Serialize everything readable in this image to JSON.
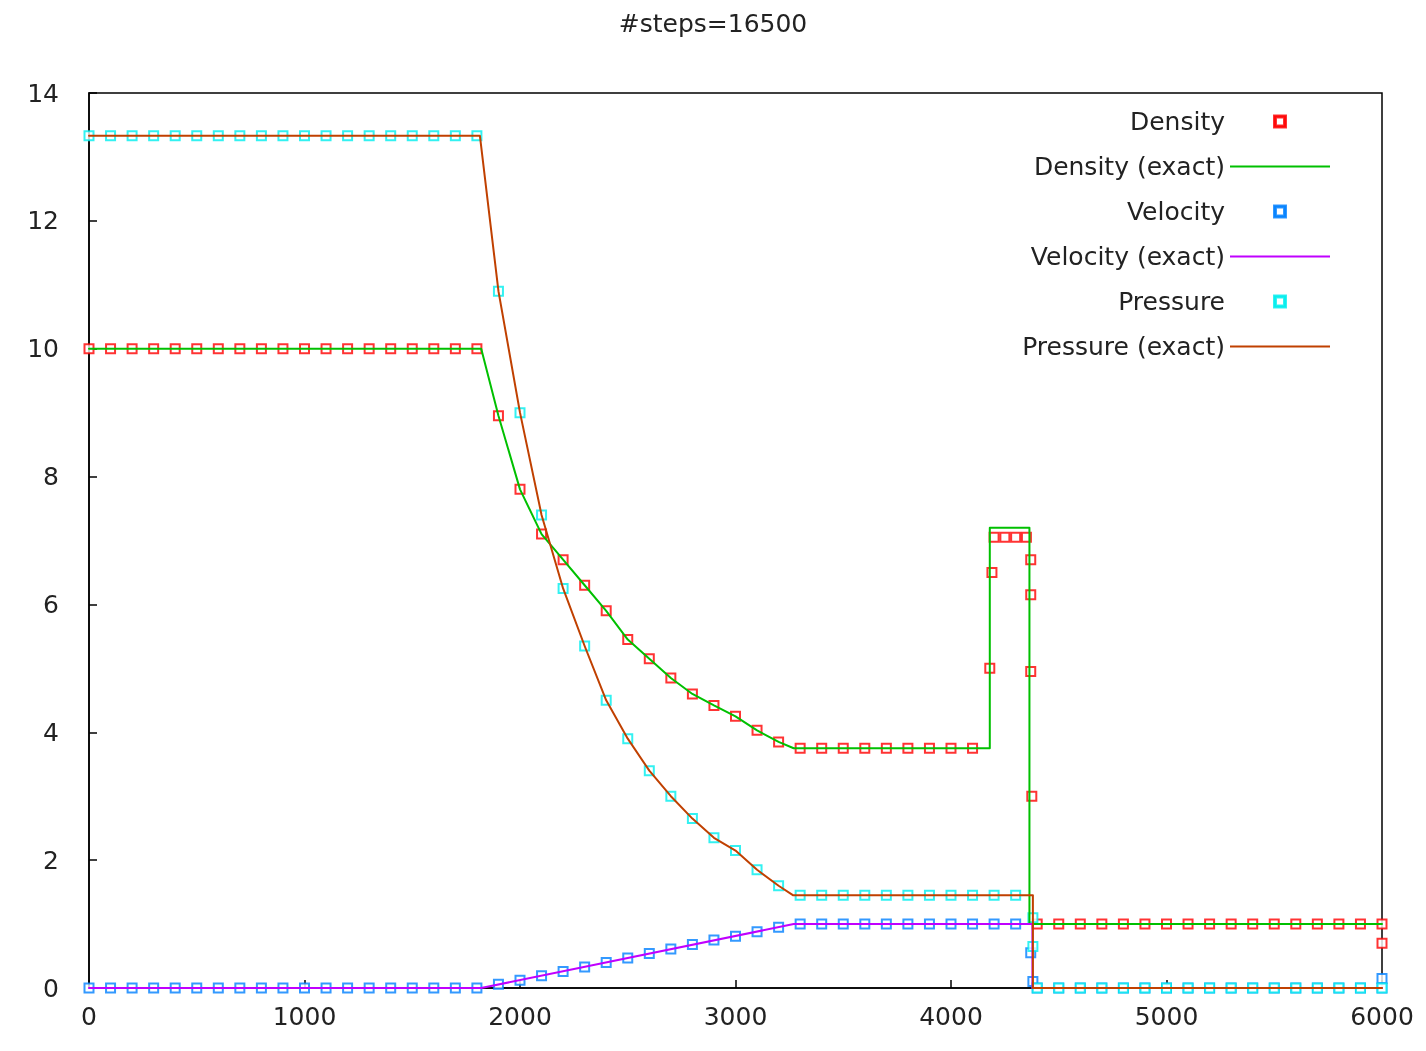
{
  "chart_data": {
    "type": "scatter",
    "title": "#steps=16500",
    "xlim": [
      0,
      6000
    ],
    "xticks": [
      0,
      1000,
      2000,
      3000,
      4000,
      5000,
      6000
    ],
    "ylim": [
      0,
      14
    ],
    "yticks": [
      0,
      2,
      4,
      6,
      8,
      10,
      12,
      14
    ],
    "grid": false,
    "legend": "top right",
    "series": [
      {
        "name": "Density",
        "marker": "square",
        "color": "#ff0000",
        "x": [
          0,
          100,
          200,
          300,
          400,
          500,
          600,
          700,
          800,
          900,
          1000,
          1100,
          1200,
          1300,
          1400,
          1500,
          1600,
          1700,
          1800,
          1900,
          2000,
          2100,
          2200,
          2300,
          2400,
          2500,
          2600,
          2700,
          2800,
          2900,
          3000,
          3100,
          3200,
          3300,
          3400,
          3500,
          3600,
          3700,
          3800,
          3900,
          4000,
          4100,
          4180,
          4190,
          4200,
          4250,
          4300,
          4350,
          4370,
          4370,
          4370,
          4375,
          4400,
          4500,
          4600,
          4700,
          4800,
          4900,
          5000,
          5100,
          5200,
          5300,
          5400,
          5500,
          5600,
          5700,
          5800,
          5900,
          6000,
          6000
        ],
        "values": [
          10,
          10,
          10,
          10,
          10,
          10,
          10,
          10,
          10,
          10,
          10,
          10,
          10,
          10,
          10,
          10,
          10,
          10,
          10,
          8.95,
          7.8,
          7.1,
          6.7,
          6.3,
          5.9,
          5.45,
          5.15,
          4.85,
          4.6,
          4.42,
          4.25,
          4.03,
          3.85,
          3.75,
          3.75,
          3.75,
          3.75,
          3.75,
          3.75,
          3.75,
          3.75,
          3.75,
          5.0,
          6.5,
          7.05,
          7.05,
          7.05,
          7.05,
          6.7,
          6.15,
          4.95,
          3.0,
          1,
          1,
          1,
          1,
          1,
          1,
          1,
          1,
          1,
          1,
          1,
          1,
          1,
          1,
          1,
          1,
          1,
          0.7
        ]
      },
      {
        "name": "Density (exact)",
        "type": "line",
        "marker": "none",
        "line_style": "solid",
        "color": "#00c000",
        "x": [
          0,
          1820,
          1900,
          2000,
          2100,
          2200,
          2300,
          2400,
          2500,
          2600,
          2700,
          2800,
          2900,
          3000,
          3100,
          3200,
          3270,
          4180,
          4180,
          4364,
          4364,
          6000
        ],
        "values": [
          10,
          10,
          8.95,
          7.8,
          7.1,
          6.7,
          6.3,
          5.9,
          5.45,
          5.15,
          4.85,
          4.6,
          4.42,
          4.25,
          4.03,
          3.85,
          3.75,
          3.75,
          7.2,
          7.2,
          1,
          1
        ]
      },
      {
        "name": "Velocity",
        "marker": "square",
        "color": "#0080ff",
        "x": [
          0,
          100,
          200,
          300,
          400,
          500,
          600,
          700,
          800,
          900,
          1000,
          1100,
          1200,
          1300,
          1400,
          1500,
          1600,
          1700,
          1800,
          1900,
          2000,
          2100,
          2200,
          2300,
          2400,
          2500,
          2600,
          2700,
          2800,
          2900,
          3000,
          3100,
          3200,
          3300,
          3400,
          3500,
          3600,
          3700,
          3800,
          3900,
          4000,
          4100,
          4200,
          4300,
          4370,
          4380,
          4400,
          4500,
          4600,
          4700,
          4800,
          4900,
          5000,
          5100,
          5200,
          5300,
          5400,
          5500,
          5600,
          5700,
          5800,
          5900,
          6000,
          6000
        ],
        "values": [
          0,
          0,
          0,
          0,
          0,
          0,
          0,
          0,
          0,
          0,
          0,
          0,
          0,
          0,
          0,
          0,
          0,
          0,
          0,
          0.06,
          0.12,
          0.19,
          0.26,
          0.33,
          0.4,
          0.47,
          0.54,
          0.61,
          0.68,
          0.75,
          0.81,
          0.88,
          0.95,
          1,
          1,
          1,
          1,
          1,
          1,
          1,
          1,
          1,
          1,
          1,
          0.55,
          0.1,
          0,
          0,
          0,
          0,
          0,
          0,
          0,
          0,
          0,
          0,
          0,
          0,
          0,
          0,
          0,
          0,
          0,
          0.15
        ]
      },
      {
        "name": "Velocity (exact)",
        "type": "line",
        "marker": "none",
        "line_style": "solid",
        "color": "#c000ff",
        "x": [
          0,
          1820,
          3270,
          4378,
          4378,
          6000
        ],
        "values": [
          0,
          0,
          1,
          1,
          0,
          0
        ]
      },
      {
        "name": "Pressure",
        "marker": "square",
        "color": "#00eeee",
        "x": [
          0,
          100,
          200,
          300,
          400,
          500,
          600,
          700,
          800,
          900,
          1000,
          1100,
          1200,
          1300,
          1400,
          1500,
          1600,
          1700,
          1800,
          1900,
          2000,
          2100,
          2200,
          2300,
          2400,
          2500,
          2600,
          2700,
          2800,
          2900,
          3000,
          3100,
          3200,
          3300,
          3400,
          3500,
          3600,
          3700,
          3800,
          3900,
          4000,
          4100,
          4200,
          4300,
          4380,
          4380,
          4400,
          4500,
          4600,
          4700,
          4800,
          4900,
          5000,
          5100,
          5200,
          5300,
          5400,
          5500,
          5600,
          5700,
          5800,
          5900,
          6000
        ],
        "values": [
          13.33,
          13.33,
          13.33,
          13.33,
          13.33,
          13.33,
          13.33,
          13.33,
          13.33,
          13.33,
          13.33,
          13.33,
          13.33,
          13.33,
          13.33,
          13.33,
          13.33,
          13.33,
          13.33,
          10.9,
          9.0,
          7.4,
          6.25,
          5.35,
          4.5,
          3.9,
          3.4,
          3.0,
          2.65,
          2.35,
          2.15,
          1.85,
          1.6,
          1.45,
          1.45,
          1.45,
          1.45,
          1.45,
          1.45,
          1.45,
          1.45,
          1.45,
          1.45,
          1.45,
          1.1,
          0.65,
          0,
          0,
          0,
          0,
          0,
          0,
          0,
          0,
          0,
          0,
          0,
          0,
          0,
          0,
          0,
          0,
          0
        ]
      },
      {
        "name": "Pressure (exact)",
        "type": "line",
        "marker": "none",
        "line_style": "solid",
        "color": "#c04000",
        "x": [
          0,
          1814,
          1900,
          2000,
          2100,
          2200,
          2300,
          2400,
          2500,
          2600,
          2700,
          2800,
          2900,
          3000,
          3100,
          3200,
          3268,
          4380,
          4380,
          6000
        ],
        "values": [
          13.33,
          13.33,
          10.9,
          9.0,
          7.4,
          6.25,
          5.35,
          4.5,
          3.9,
          3.4,
          3.0,
          2.65,
          2.35,
          2.15,
          1.85,
          1.6,
          1.45,
          1.45,
          0,
          0
        ]
      }
    ]
  }
}
